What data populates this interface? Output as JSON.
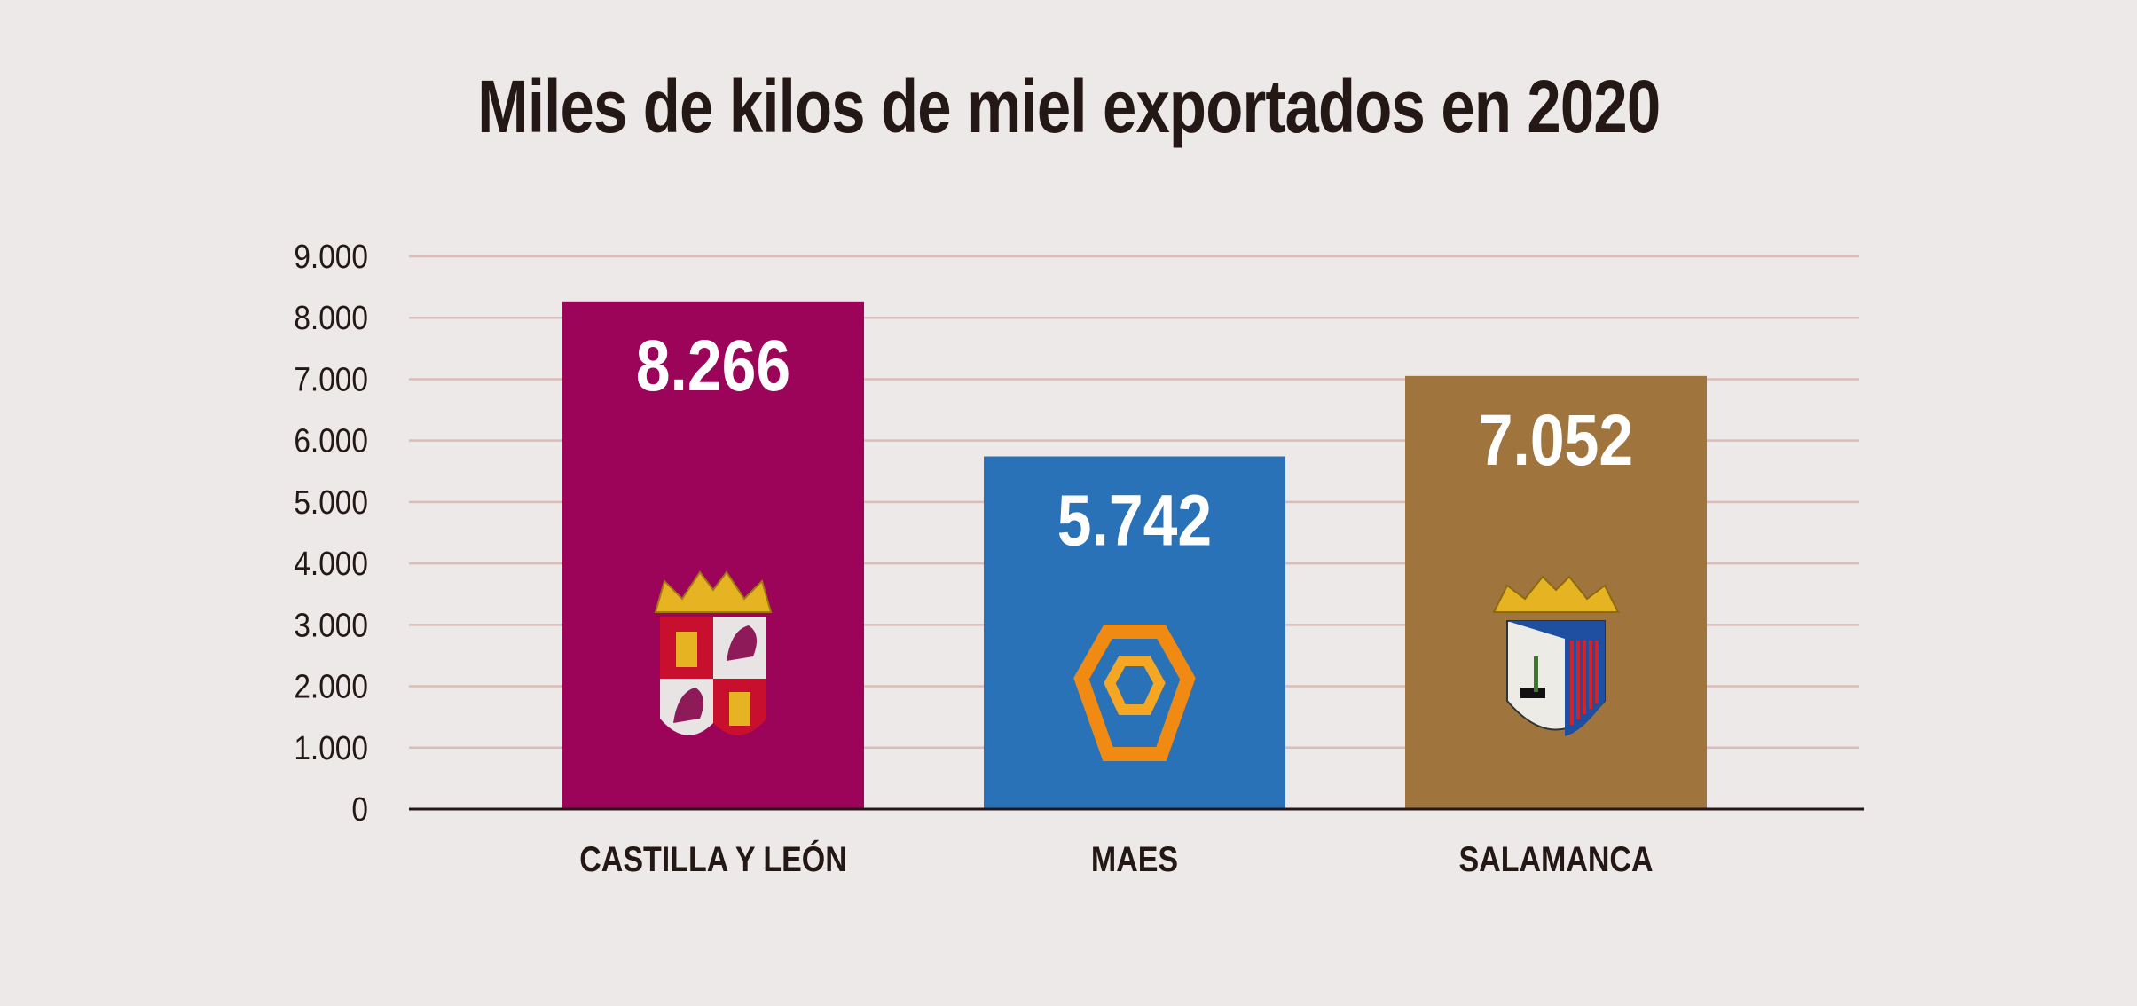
{
  "chart_data": {
    "type": "bar",
    "title": "Miles de kilos de miel exportados en 2020",
    "xlabel": "",
    "ylabel": "",
    "categories": [
      "CASTILLA Y LEÓN",
      "MAES",
      "SALAMANCA"
    ],
    "values": [
      8266,
      5742,
      7052
    ],
    "value_labels": [
      "8.266",
      "5.742",
      "7.052"
    ],
    "colors": [
      "#9b0459",
      "#2a72b8",
      "#a0743d"
    ],
    "icons": [
      "castilla-leon-coat-of-arms-icon",
      "maes-hexagon-logo-icon",
      "salamanca-coat-of-arms-icon"
    ],
    "ylim": [
      0,
      9000
    ],
    "yticks": [
      0,
      1000,
      2000,
      3000,
      4000,
      5000,
      6000,
      7000,
      8000,
      9000
    ],
    "ytick_labels": [
      "0",
      "1.000",
      "2.000",
      "3.000",
      "4.000",
      "5.000",
      "6.000",
      "7.000",
      "8.000",
      "9.000"
    ],
    "grid": true,
    "grid_color": "#dcbcb8",
    "legend": "none"
  }
}
